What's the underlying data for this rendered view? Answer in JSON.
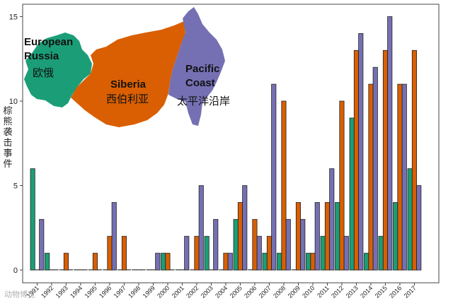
{
  "chart_data": {
    "type": "bar",
    "ylabel": "棕熊袭击事件",
    "ylim": [
      0,
      16
    ],
    "yticks": [
      0,
      5,
      10,
      15
    ],
    "categories": [
      "1991",
      "1992",
      "1993",
      "1994",
      "1995",
      "1996",
      "1997",
      "1998",
      "1999",
      "2000",
      "2001",
      "2002",
      "2003",
      "2004",
      "2005",
      "2006",
      "2007",
      "2008",
      "2009",
      "2010",
      "2011",
      "2012",
      "2013",
      "2014",
      "2015",
      "2016",
      "2017"
    ],
    "series": [
      {
        "name": "European Russia",
        "color": "#1b9e77",
        "values": [
          6,
          1,
          0,
          0,
          0,
          0,
          0,
          0,
          0,
          1,
          0,
          0,
          2,
          0,
          3,
          0,
          1,
          1,
          0,
          1,
          2,
          4,
          9,
          1,
          2,
          4,
          6
        ]
      },
      {
        "name": "Siberia",
        "color": "#d95f02",
        "values": [
          0,
          0,
          1,
          0,
          1,
          2,
          2,
          0,
          0,
          1,
          0,
          2,
          0,
          1,
          4,
          3,
          2,
          10,
          4,
          1,
          4,
          10,
          13,
          11,
          13,
          11,
          13
        ]
      },
      {
        "name": "Pacific Coast",
        "color": "#7570b3",
        "values": [
          3,
          0,
          0,
          0,
          0,
          4,
          0,
          0,
          1,
          0,
          2,
          5,
          3,
          1,
          5,
          2,
          11,
          3,
          3,
          4,
          6,
          2,
          14,
          12,
          15,
          11,
          5
        ]
      }
    ],
    "legend_map": {
      "european": {
        "line1": "European",
        "line2": "Russia",
        "cn": "欧俄"
      },
      "siberia": {
        "line1": "Siberia",
        "cn": "西伯利亚"
      },
      "pacific": {
        "line1": "Pacific",
        "line2": "Coast",
        "cn": "太平洋沿岸"
      }
    }
  },
  "watermark": "动物博览"
}
